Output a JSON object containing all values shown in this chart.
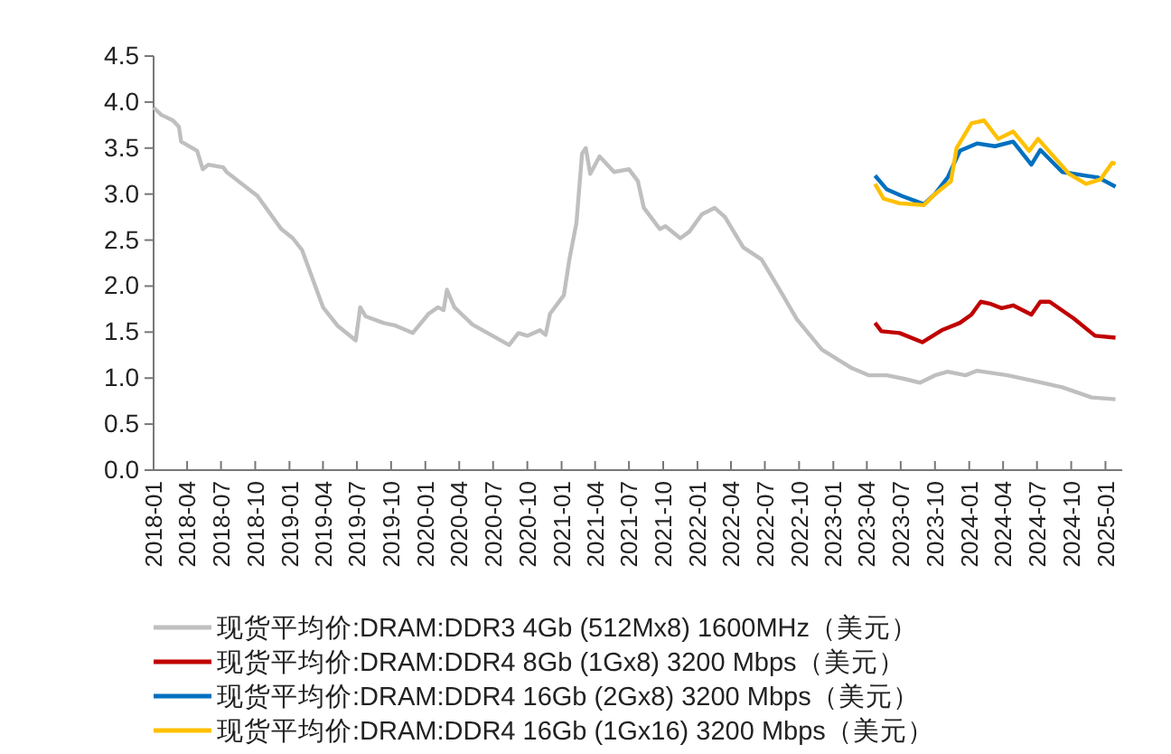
{
  "chart_data": {
    "type": "line",
    "legend": "bottom",
    "grid": false,
    "marker": "none",
    "line_style": "solid",
    "ylim": [
      0,
      4.5
    ],
    "yticks": [
      {
        "value": 0,
        "label": "0.0"
      },
      {
        "value": 0.5,
        "label": "0.5"
      },
      {
        "value": 1,
        "label": "1.0"
      },
      {
        "value": 1.5,
        "label": "1.5"
      },
      {
        "value": 2,
        "label": "2.0"
      },
      {
        "value": 2.5,
        "label": "2.5"
      },
      {
        "value": 3,
        "label": "3.0"
      },
      {
        "value": 3.5,
        "label": "3.5"
      },
      {
        "value": 4,
        "label": "4.0"
      },
      {
        "value": 4.5,
        "label": "4.5"
      }
    ],
    "xlim": [
      "2018-01-01",
      "2025-02-15"
    ],
    "xticks": [
      "2018-01",
      "2018-04",
      "2018-07",
      "2018-10",
      "2019-01",
      "2019-04",
      "2019-07",
      "2019-10",
      "2020-01",
      "2020-04",
      "2020-07",
      "2020-10",
      "2021-01",
      "2021-04",
      "2021-07",
      "2021-10",
      "2022-01",
      "2022-04",
      "2022-07",
      "2022-10",
      "2023-01",
      "2023-04",
      "2023-07",
      "2023-10",
      "2024-01",
      "2024-04",
      "2024-07",
      "2024-10",
      "2025-01"
    ],
    "series": [
      {
        "name": "现货平均价:DRAM:DDR3 4Gb (512Mx8) 1600MHz（美元）",
        "color": "#bfbfbf",
        "x": [
          "2018-01-01",
          "2018-01-22",
          "2018-02-22",
          "2018-03-10",
          "2018-03-16",
          "2018-04-28",
          "2018-05-13",
          "2018-05-28",
          "2018-07-07",
          "2018-07-16",
          "2018-10-07",
          "2018-12-10",
          "2019-01-10",
          "2019-02-04",
          "2019-02-22",
          "2019-04-01",
          "2019-05-10",
          "2019-06-28",
          "2019-07-10",
          "2019-07-25",
          "2019-09-10",
          "2019-10-13",
          "2019-11-28",
          "2020-01-10",
          "2020-02-04",
          "2020-02-19",
          "2020-02-28",
          "2020-03-19",
          "2020-05-07",
          "2020-06-25",
          "2020-08-13",
          "2020-09-07",
          "2020-10-01",
          "2020-11-04",
          "2020-11-19",
          "2020-12-01",
          "2021-01-07",
          "2021-01-22",
          "2021-02-10",
          "2021-02-25",
          "2021-03-07",
          "2021-03-19",
          "2021-04-13",
          "2021-05-22",
          "2021-07-01",
          "2021-07-25",
          "2021-08-10",
          "2021-09-22",
          "2021-10-07",
          "2021-11-16",
          "2021-12-10",
          "2022-01-13",
          "2022-02-16",
          "2022-03-16",
          "2022-05-04",
          "2022-06-22",
          "2022-08-10",
          "2022-09-25",
          "2022-12-01",
          "2023-02-19",
          "2023-04-07",
          "2023-05-25",
          "2023-07-13",
          "2023-08-22",
          "2023-10-01",
          "2023-11-04",
          "2023-12-22",
          "2024-01-22",
          "2024-04-13",
          "2024-07-04",
          "2024-09-07",
          "2024-11-25",
          "2025-01-28"
        ],
        "values": [
          3.94,
          3.86,
          3.8,
          3.73,
          3.57,
          3.47,
          3.27,
          3.32,
          3.29,
          3.24,
          2.98,
          2.62,
          2.52,
          2.39,
          2.19,
          1.77,
          1.57,
          1.41,
          1.77,
          1.67,
          1.6,
          1.57,
          1.49,
          1.7,
          1.77,
          1.74,
          1.96,
          1.77,
          1.58,
          1.47,
          1.36,
          1.49,
          1.46,
          1.52,
          1.47,
          1.7,
          1.9,
          2.29,
          2.69,
          3.44,
          3.5,
          3.22,
          3.41,
          3.24,
          3.27,
          3.14,
          2.85,
          2.62,
          2.65,
          2.52,
          2.59,
          2.78,
          2.85,
          2.75,
          2.42,
          2.29,
          1.96,
          1.64,
          1.31,
          1.11,
          1.03,
          1.03,
          0.99,
          0.95,
          1.03,
          1.07,
          1.03,
          1.08,
          1.03,
          0.96,
          0.9,
          0.79,
          0.77
        ]
      },
      {
        "name": "现货平均价:DRAM:DDR4 8Gb (1Gx8) 3200 Mbps（美元）",
        "color": "#c00000",
        "x": [
          "2023-04-23",
          "2023-05-10",
          "2023-06-28",
          "2023-08-28",
          "2023-10-19",
          "2023-12-07",
          "2024-01-07",
          "2024-02-01",
          "2024-02-25",
          "2024-03-28",
          "2024-04-28",
          "2024-06-16",
          "2024-07-10",
          "2024-08-04",
          "2024-10-07",
          "2024-12-04",
          "2025-01-28"
        ],
        "values": [
          1.6,
          1.51,
          1.49,
          1.39,
          1.52,
          1.6,
          1.69,
          1.83,
          1.81,
          1.76,
          1.79,
          1.69,
          1.83,
          1.83,
          1.65,
          1.46,
          1.44
        ]
      },
      {
        "name": "现货平均价:DRAM:DDR4 16Gb (2Gx8) 3200 Mbps（美元）",
        "color": "#0070c0",
        "x": [
          "2023-04-23",
          "2023-05-25",
          "2023-07-04",
          "2023-09-01",
          "2023-10-01",
          "2023-11-04",
          "2023-12-07",
          "2024-01-22",
          "2024-03-10",
          "2024-04-28",
          "2024-06-16",
          "2024-07-10",
          "2024-09-07",
          "2024-11-10",
          "2024-12-13",
          "2025-01-28"
        ],
        "values": [
          3.2,
          3.05,
          2.98,
          2.89,
          3.0,
          3.18,
          3.47,
          3.55,
          3.52,
          3.57,
          3.32,
          3.48,
          3.24,
          3.2,
          3.18,
          3.08
        ]
      },
      {
        "name": "现货平均价:DRAM:DDR4 16Gb (1Gx16) 3200 Mbps（美元）",
        "color": "#ffc000",
        "x": [
          "2023-04-23",
          "2023-05-16",
          "2023-06-28",
          "2023-09-01",
          "2023-10-01",
          "2023-11-13",
          "2023-11-28",
          "2024-01-07",
          "2024-02-10",
          "2024-03-19",
          "2024-04-28",
          "2024-06-10",
          "2024-07-04",
          "2024-09-25",
          "2024-11-10",
          "2024-12-19",
          "2025-01-19",
          "2025-01-28"
        ],
        "values": [
          3.11,
          2.95,
          2.9,
          2.88,
          3.0,
          3.14,
          3.5,
          3.77,
          3.8,
          3.6,
          3.68,
          3.47,
          3.6,
          3.22,
          3.11,
          3.16,
          3.34,
          3.33
        ]
      }
    ]
  }
}
